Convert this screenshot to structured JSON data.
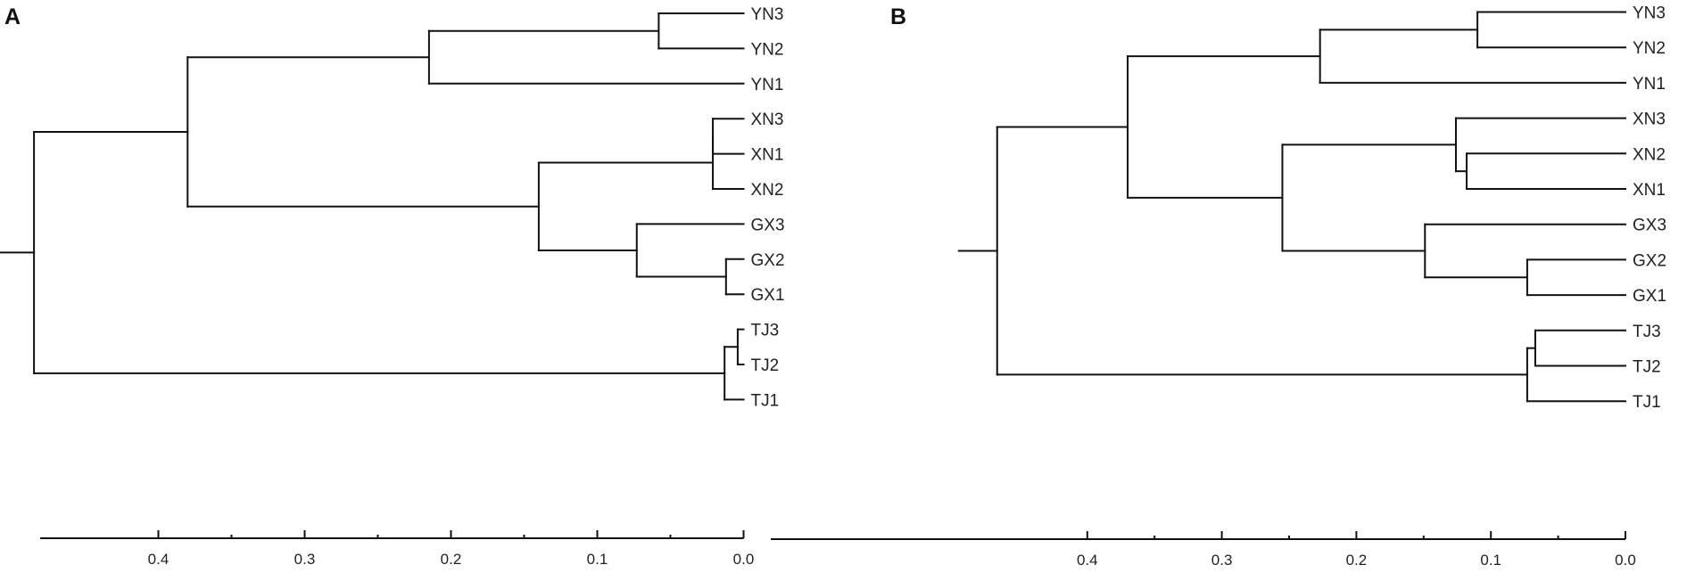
{
  "panels": [
    {
      "letter": "A",
      "leaves": [
        "YN3",
        "YN2",
        "YN1",
        "XN3",
        "XN1",
        "XN2",
        "GX3",
        "GX2",
        "GX1",
        "TJ3",
        "TJ2",
        "TJ1"
      ],
      "tree": {
        "h": 0.485,
        "children": [
          {
            "h": 0.38,
            "children": [
              {
                "h": 0.215,
                "children": [
                  {
                    "h": 0.058,
                    "children": [
                      "YN3",
                      "YN2"
                    ]
                  },
                  "YN1"
                ]
              },
              {
                "h": 0.14,
                "children": [
                  {
                    "h": 0.021,
                    "children": [
                      {
                        "h": 0.021,
                        "children": [
                          "XN3",
                          "XN1"
                        ]
                      },
                      "XN2"
                    ]
                  },
                  {
                    "h": 0.073,
                    "children": [
                      "GX3",
                      {
                        "h": 0.012,
                        "children": [
                          "GX2",
                          "GX1"
                        ]
                      }
                    ]
                  }
                ]
              }
            ]
          },
          {
            "h": 0.013,
            "children": [
              {
                "h": 0.004,
                "children": [
                  "TJ3",
                  "TJ2"
                ]
              },
              "TJ1"
            ]
          }
        ]
      },
      "axis": {
        "ticks": [
          "0.4",
          "0.3",
          "0.2",
          "0.1",
          "0.0"
        ],
        "tick_values": [
          0.4,
          0.3,
          0.2,
          0.1,
          0.0
        ]
      }
    },
    {
      "letter": "B",
      "leaves": [
        "YN3",
        "YN2",
        "YN1",
        "XN3",
        "XN2",
        "XN1",
        "GX3",
        "GX2",
        "GX1",
        "TJ3",
        "TJ2",
        "TJ1"
      ],
      "tree": {
        "h": 0.467,
        "children": [
          {
            "h": 0.37,
            "children": [
              {
                "h": 0.227,
                "children": [
                  {
                    "h": 0.11,
                    "children": [
                      "YN3",
                      "YN2"
                    ]
                  },
                  "YN1"
                ]
              },
              {
                "h": 0.255,
                "children": [
                  {
                    "h": 0.126,
                    "children": [
                      "XN3",
                      {
                        "h": 0.118,
                        "children": [
                          "XN2",
                          "XN1"
                        ]
                      }
                    ]
                  },
                  {
                    "h": 0.149,
                    "children": [
                      "GX3",
                      {
                        "h": 0.073,
                        "children": [
                          "GX2",
                          "GX1"
                        ]
                      }
                    ]
                  }
                ]
              }
            ]
          },
          {
            "h": 0.073,
            "children": [
              {
                "h": 0.067,
                "children": [
                  "TJ3",
                  "TJ2"
                ]
              },
              "TJ1"
            ]
          }
        ]
      },
      "axis": {
        "ticks": [
          "0.4",
          "0.3",
          "0.2",
          "0.1",
          "0.0"
        ],
        "tick_values": [
          0.4,
          0.3,
          0.2,
          0.1,
          0.0
        ]
      }
    }
  ]
}
